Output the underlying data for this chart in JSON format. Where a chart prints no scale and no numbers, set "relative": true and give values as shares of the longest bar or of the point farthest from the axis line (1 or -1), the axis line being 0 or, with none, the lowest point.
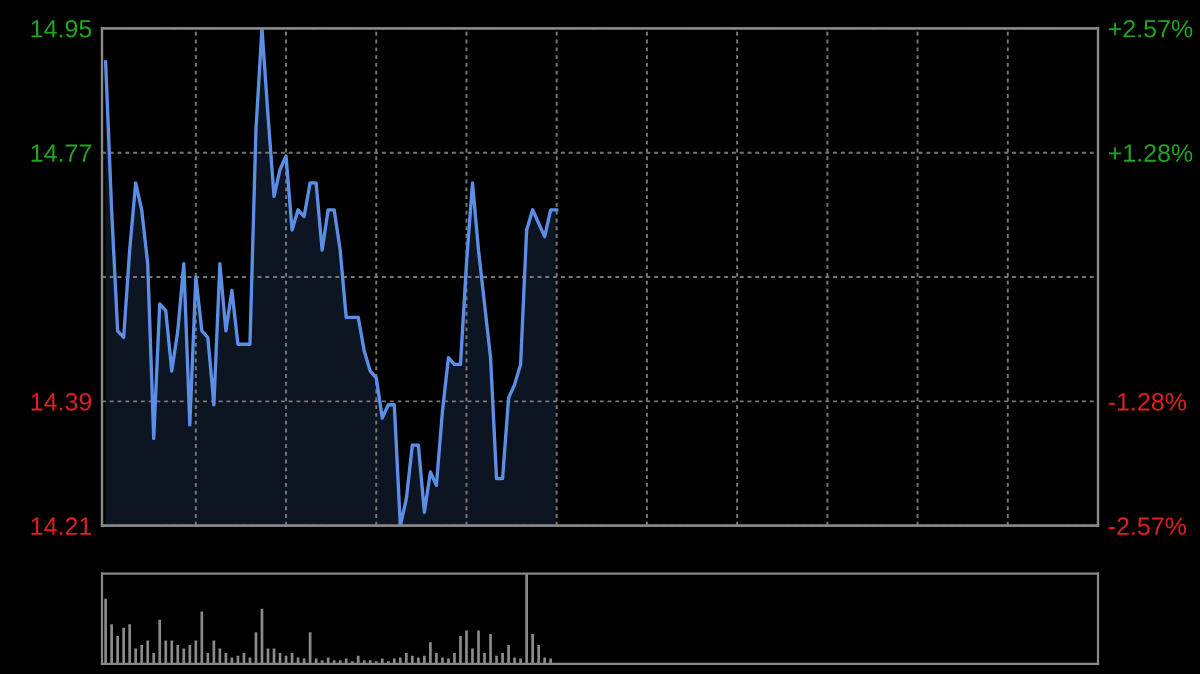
{
  "chart_data": [
    {
      "type": "area",
      "categories": [
        null,
        null,
        null,
        null,
        null,
        null,
        null,
        null,
        null,
        null,
        null,
        null,
        null,
        null,
        null,
        null,
        null,
        null,
        null,
        null,
        null,
        null,
        null,
        null,
        null,
        null,
        null,
        null,
        null,
        null,
        null,
        null,
        null,
        null,
        null,
        null,
        null,
        null,
        null,
        null,
        null,
        null,
        null,
        null,
        null,
        null,
        null,
        null,
        null,
        null,
        null,
        null,
        null,
        null,
        null,
        null,
        null,
        null,
        null,
        null,
        null,
        null,
        null,
        null,
        null,
        null,
        null,
        null,
        null,
        null,
        null,
        null,
        null,
        null,
        null,
        null,
        null,
        null,
        null,
        null,
        null,
        null,
        null,
        null,
        null,
        null,
        null,
        null,
        null,
        null,
        null,
        null,
        null,
        null,
        null,
        null,
        null,
        null,
        null,
        null,
        null,
        null,
        null,
        null,
        null,
        null,
        null,
        null,
        null,
        null,
        null,
        null,
        null,
        null,
        null,
        null,
        null,
        null,
        null,
        null,
        null,
        null,
        null,
        null,
        null,
        null,
        null,
        null,
        null,
        null,
        null,
        null,
        null,
        null,
        null,
        null,
        null,
        null,
        null,
        null,
        null,
        null,
        null,
        null,
        null,
        null,
        null,
        null,
        null,
        null,
        null,
        null,
        null,
        null,
        null,
        null,
        null,
        null,
        null,
        null,
        null,
        null,
        null,
        null,
        null,
        null
      ],
      "ylim": [
        14.21,
        14.95
      ],
      "yticks": [
        14.21,
        {
          "value": 14.395,
          "label": "14.39"
        },
        {
          "value": 14.58,
          "label": null
        },
        {
          "value": 14.765,
          "label": "14.77"
        },
        14.95
      ],
      "y2lim": [
        -2.57,
        2.57
      ],
      "y2ticks": [
        {
          "value": -2.57,
          "label": "-2.57%"
        },
        {
          "value": -1.285,
          "label": "-1.28%"
        },
        {
          "value": 1.285,
          "label": "+1.28%"
        },
        {
          "value": 2.57,
          "label": "+2.57%"
        }
      ],
      "grid": true,
      "series": [
        {
          "color": "#5b8ee6",
          "values": [
            14.9,
            14.68,
            14.5,
            14.49,
            14.62,
            14.72,
            14.68,
            14.6,
            14.34,
            14.54,
            14.53,
            14.44,
            14.5,
            14.6,
            14.36,
            14.58,
            14.5,
            14.49,
            14.39,
            14.6,
            14.5,
            14.56,
            14.48,
            14.48,
            14.48,
            14.8,
            14.95,
            14.82,
            14.7,
            14.74,
            14.76,
            14.65,
            14.68,
            14.67,
            14.72,
            14.72,
            14.62,
            14.68,
            14.68,
            14.62,
            14.52,
            14.52,
            14.52,
            14.47,
            14.44,
            14.43,
            14.37,
            14.39,
            14.39,
            14.21,
            14.25,
            14.33,
            14.33,
            14.23,
            14.29,
            14.27,
            14.38,
            14.46,
            14.45,
            14.45,
            14.6,
            14.72,
            14.62,
            14.54,
            14.46,
            14.28,
            14.28,
            14.4,
            14.42,
            14.45,
            14.65,
            14.68,
            14.66,
            14.64,
            14.68,
            14.68,
            null,
            null,
            null,
            null,
            null,
            null,
            null,
            null,
            null,
            null,
            null,
            null,
            null,
            null,
            null,
            null,
            null,
            null,
            null,
            null,
            null,
            null,
            null,
            null,
            null,
            null,
            null,
            null,
            null,
            null,
            null,
            null,
            null,
            null,
            null,
            null,
            null,
            null,
            null,
            null,
            null,
            null,
            null,
            null,
            null,
            null,
            null,
            null,
            null,
            null,
            null,
            null,
            null,
            null,
            null,
            null,
            null,
            null,
            null,
            null,
            null,
            null,
            null,
            null,
            null,
            null,
            null,
            null,
            null,
            null,
            null,
            null,
            null,
            null,
            null,
            null,
            null,
            null,
            null,
            null,
            null,
            null,
            null,
            null,
            null,
            null,
            null,
            null,
            null,
            null
          ]
        }
      ]
    },
    {
      "type": "bar",
      "relative": true,
      "categories": [
        null,
        null,
        null,
        null,
        null,
        null,
        null,
        null,
        null,
        null,
        null,
        null,
        null,
        null,
        null,
        null,
        null,
        null,
        null,
        null,
        null,
        null,
        null,
        null,
        null,
        null,
        null,
        null,
        null,
        null,
        null,
        null,
        null,
        null,
        null,
        null,
        null,
        null,
        null,
        null,
        null,
        null,
        null,
        null,
        null,
        null,
        null,
        null,
        null,
        null,
        null,
        null,
        null,
        null,
        null,
        null,
        null,
        null,
        null,
        null,
        null,
        null,
        null,
        null,
        null,
        null,
        null,
        null,
        null,
        null,
        null,
        null,
        null,
        null,
        null,
        null,
        null,
        null,
        null,
        null,
        null,
        null,
        null,
        null,
        null,
        null,
        null,
        null,
        null,
        null,
        null,
        null,
        null,
        null,
        null,
        null,
        null,
        null,
        null,
        null,
        null,
        null,
        null,
        null,
        null,
        null,
        null,
        null,
        null,
        null,
        null,
        null,
        null,
        null,
        null,
        null,
        null,
        null,
        null,
        null,
        null,
        null,
        null,
        null,
        null,
        null,
        null,
        null,
        null,
        null,
        null,
        null,
        null,
        null,
        null,
        null,
        null,
        null,
        null,
        null,
        null,
        null,
        null,
        null,
        null,
        null,
        null,
        null,
        null,
        null,
        null,
        null,
        null,
        null,
        null,
        null,
        null,
        null,
        null,
        null,
        null,
        null,
        null,
        null,
        null,
        null
      ],
      "series": [
        {
          "color": "#8a8a8a",
          "values": [
            0.72,
            0.44,
            0.31,
            0.4,
            0.44,
            0.17,
            0.21,
            0.26,
            0.12,
            0.49,
            0.26,
            0.26,
            0.21,
            0.17,
            0.21,
            0.26,
            0.58,
            0.12,
            0.26,
            0.17,
            0.12,
            0.07,
            0.09,
            0.12,
            0.07,
            0.35,
            0.61,
            0.17,
            0.17,
            0.12,
            0.09,
            0.12,
            0.07,
            0.06,
            0.35,
            0.06,
            0.04,
            0.07,
            0.04,
            0.04,
            0.06,
            0.03,
            0.09,
            0.04,
            0.04,
            0.03,
            0.06,
            0.03,
            0.06,
            0.07,
            0.12,
            0.09,
            0.07,
            0.09,
            0.24,
            0.12,
            0.07,
            0.06,
            0.12,
            0.31,
            0.37,
            0.17,
            0.37,
            0.12,
            0.33,
            0.09,
            0.12,
            0.21,
            0.07,
            0.06,
            1.0,
            0.33,
            0.21,
            0.07,
            0.06,
            null,
            null,
            null,
            null,
            null,
            null,
            null,
            null,
            null,
            null,
            null,
            null,
            null,
            null,
            null,
            null,
            null,
            null,
            null,
            null,
            null,
            null,
            null,
            null,
            null,
            null,
            null,
            null,
            null,
            null,
            null,
            null,
            null,
            null,
            null,
            null,
            null,
            null,
            null,
            null,
            null,
            null,
            null,
            null,
            null,
            null,
            null,
            null,
            null,
            null,
            null,
            null,
            null,
            null,
            null,
            null,
            null,
            null,
            null,
            null,
            null,
            null,
            null,
            null,
            null,
            null,
            null,
            null,
            null,
            null,
            null,
            null,
            null,
            null,
            null,
            null,
            null,
            null,
            null,
            null,
            null,
            null,
            null,
            null,
            null,
            null,
            null,
            null,
            null,
            null,
            null
          ]
        }
      ]
    }
  ]
}
